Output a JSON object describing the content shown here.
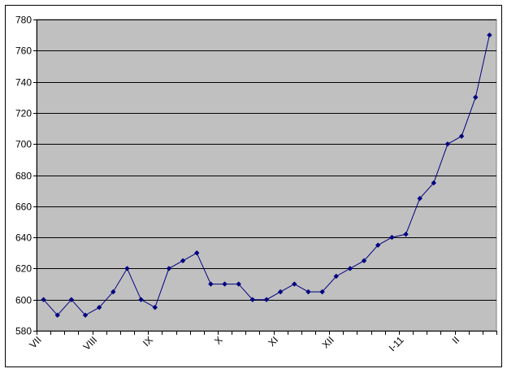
{
  "chart_data": {
    "type": "line",
    "title": "",
    "xlabel": "",
    "ylabel": "",
    "ylim": [
      580,
      780
    ],
    "yticks": [
      580,
      600,
      620,
      640,
      660,
      680,
      700,
      720,
      740,
      760,
      780
    ],
    "grid": true,
    "legend": "none",
    "x_tick_labels": [
      {
        "index": 0,
        "label": "VII"
      },
      {
        "index": 4,
        "label": "VIII"
      },
      {
        "index": 8,
        "label": "IX"
      },
      {
        "index": 13,
        "label": "X"
      },
      {
        "index": 17,
        "label": "XI"
      },
      {
        "index": 21,
        "label": "XII"
      },
      {
        "index": 26,
        "label": "I-11"
      },
      {
        "index": 30,
        "label": "II"
      }
    ],
    "values": [
      600,
      590,
      600,
      590,
      595,
      605,
      620,
      600,
      595,
      620,
      625,
      630,
      610,
      610,
      610,
      600,
      600,
      605,
      610,
      605,
      605,
      615,
      620,
      625,
      635,
      640,
      642,
      665,
      675,
      700,
      705,
      730,
      770
    ],
    "colors": {
      "line": "#000080",
      "plot_background": "#C0C0C0",
      "gridline": "#000000"
    }
  }
}
